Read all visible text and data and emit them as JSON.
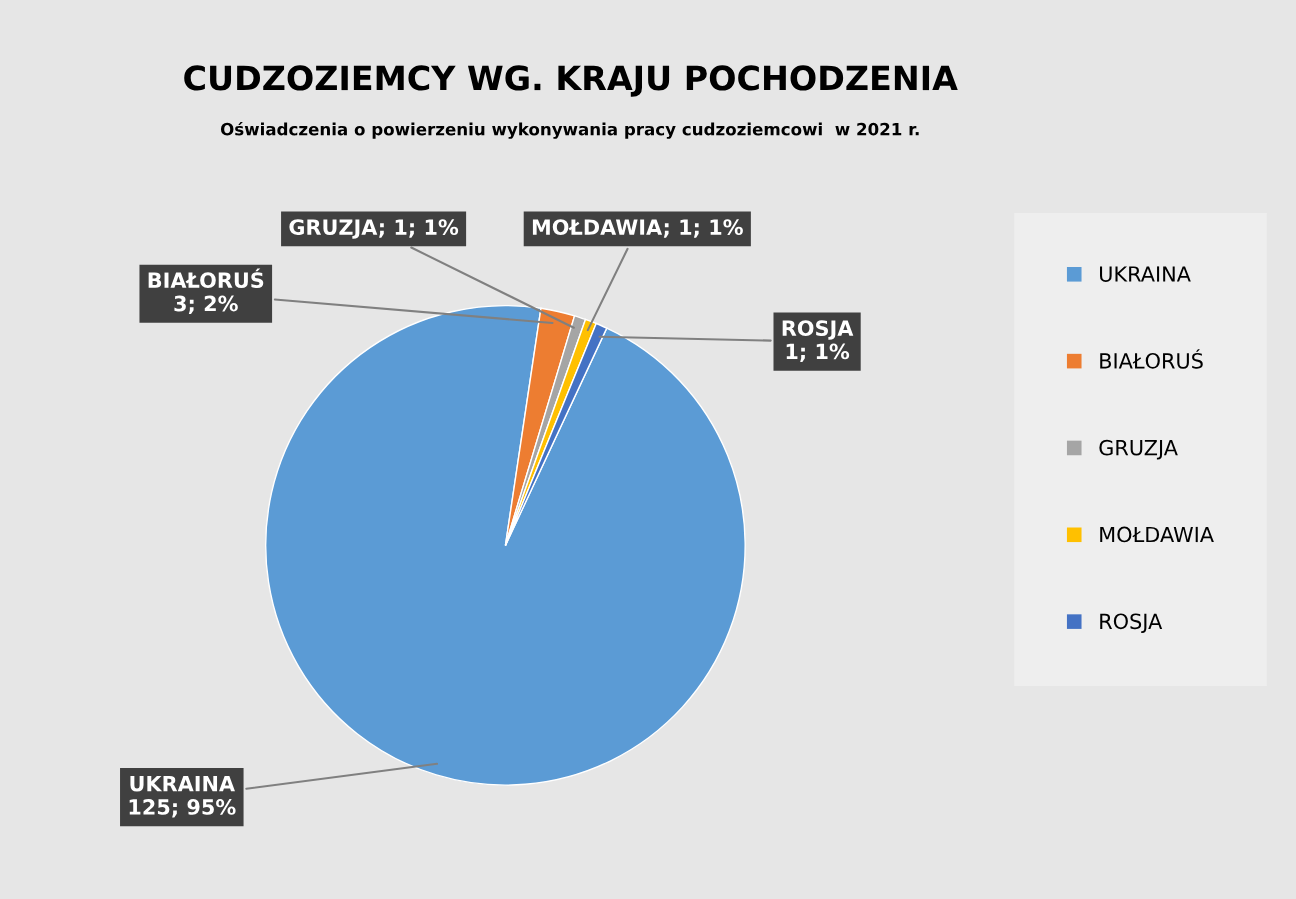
{
  "chart_data": {
    "type": "pie",
    "title": "CUDZOZIEMCY WG. KRAJU POCHODZENIA",
    "subtitle": "Oświadczenia o powierzeniu wykonywania pracy cudzoziemcowi  w 2021 r.",
    "categories": [
      "UKRAINA",
      "BIAŁORUŚ",
      "GRUZJA",
      "MOŁDAWIA",
      "ROSJA"
    ],
    "values": [
      125,
      3,
      1,
      1,
      1
    ],
    "colors": [
      "#5b9bd5",
      "#ed7d31",
      "#a5a5a5",
      "#ffc000",
      "#4472c4"
    ],
    "value_labels": [
      "UKRAINA\n125; 95%",
      "BIAŁORUŚ\n3; 2%",
      "GRUZJA; 1; 1%",
      "MOŁDAWIA; 1; 1%",
      "ROSJA\n1; 1%"
    ],
    "legend": "right"
  }
}
